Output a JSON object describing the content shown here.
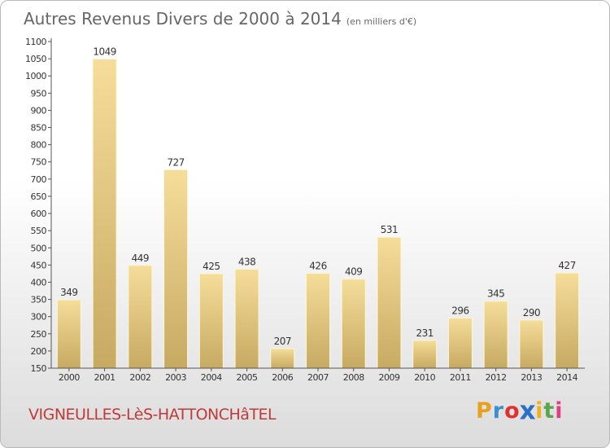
{
  "header": {
    "title": "Autres Revenus Divers de 2000 à 2014",
    "unit": "(en milliers d'€)"
  },
  "footer": {
    "commune": "VIGNEULLES-LèS-HATTONCHâTEL"
  },
  "logo": {
    "letters": [
      "P",
      "r",
      "o",
      "x",
      "i",
      "t",
      "i"
    ],
    "colors": [
      "#e8a020",
      "#3a8fd0",
      "#e03030",
      "#2a70c8",
      "#f0b020",
      "#5aa64a",
      "#e04080"
    ]
  },
  "chart_data": {
    "type": "bar",
    "title": "Autres Revenus Divers de 2000 à 2014",
    "subtitle": "(en milliers d'€)",
    "categories": [
      "2000",
      "2001",
      "2002",
      "2003",
      "2004",
      "2005",
      "2006",
      "2007",
      "2008",
      "2009",
      "2010",
      "2011",
      "2012",
      "2013",
      "2014"
    ],
    "values": [
      349,
      1049,
      449,
      727,
      425,
      438,
      207,
      426,
      409,
      531,
      231,
      296,
      345,
      290,
      427
    ],
    "data_labels": [
      "349",
      "1049",
      "449",
      "727",
      "425",
      "438",
      "207",
      "426",
      "409",
      "531",
      "231",
      "296",
      "345",
      "290",
      "427"
    ],
    "y_ticks": [
      "150",
      "200",
      "250",
      "300",
      "350",
      "400",
      "450",
      "500",
      "550",
      "600",
      "650",
      "700",
      "750",
      "800",
      "850",
      "900",
      "950",
      "1000",
      "1050",
      "1100"
    ],
    "ylim": [
      150,
      1100
    ],
    "xlabel": "",
    "ylabel": "",
    "grid": false,
    "legend": "none",
    "colors": {
      "bar_light": "#f5dd9a",
      "bar_dark": "#c7aa62",
      "axis": "#555555",
      "text": "#333333"
    }
  }
}
